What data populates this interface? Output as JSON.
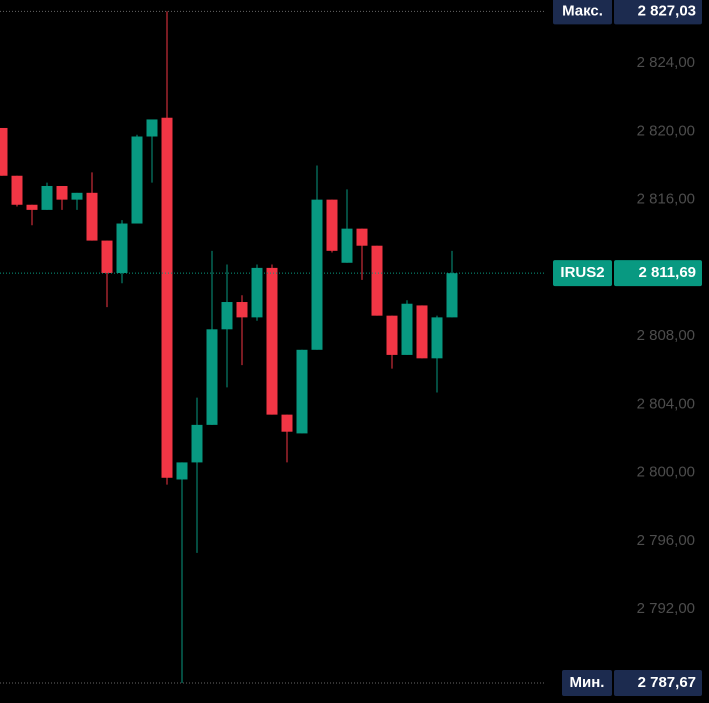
{
  "chart_data": {
    "type": "candlestick",
    "open": [
      2820.2,
      2817.4,
      2815.7,
      2815.4,
      2816.8,
      2816.0,
      2816.4,
      2813.6,
      2811.7,
      2814.6,
      2819.7,
      2820.8,
      2799.6,
      2800.6,
      2802.8,
      2808.4,
      2810.0,
      2809.1,
      2812.0,
      2803.4,
      2802.3,
      2807.2,
      2816.0,
      2812.3,
      2814.3,
      2813.3,
      2809.2,
      2806.9,
      2809.8,
      2806.7,
      2809.1
    ],
    "high": [
      2820.2,
      2817.4,
      2815.7,
      2817.0,
      2816.8,
      2816.4,
      2817.6,
      2813.6,
      2814.8,
      2819.8,
      2820.7,
      2827.03,
      2800.6,
      2804.4,
      2813.0,
      2812.2,
      2810.4,
      2812.2,
      2812.2,
      2803.4,
      2807.2,
      2818.0,
      2816.0,
      2816.6,
      2814.3,
      2813.3,
      2809.2,
      2810.1,
      2809.8,
      2809.2,
      2813.0
    ],
    "low": [
      2817.4,
      2815.6,
      2814.5,
      2815.4,
      2815.4,
      2815.4,
      2813.6,
      2809.7,
      2811.1,
      2814.6,
      2817.0,
      2799.3,
      2787.67,
      2795.3,
      2802.8,
      2805.0,
      2806.3,
      2808.9,
      2803.4,
      2800.6,
      2802.3,
      2807.2,
      2812.9,
      2812.3,
      2811.3,
      2809.2,
      2806.1,
      2806.9,
      2806.7,
      2804.7,
      2809.1
    ],
    "close": [
      2817.4,
      2815.7,
      2815.4,
      2816.8,
      2816.0,
      2816.4,
      2813.6,
      2811.7,
      2814.6,
      2819.7,
      2820.7,
      2799.7,
      2800.6,
      2802.8,
      2808.4,
      2810.0,
      2809.1,
      2812.0,
      2803.4,
      2802.4,
      2807.2,
      2816.0,
      2813.0,
      2814.3,
      2813.3,
      2809.2,
      2806.9,
      2809.9,
      2806.7,
      2809.1,
      2811.69
    ],
    "up_color": "#089981",
    "down_color": "#f23645",
    "ylim": [
      2786.5,
      2827.7
    ],
    "yticks": [
      {
        "value": 2824,
        "label": "2 824,00"
      },
      {
        "value": 2820,
        "label": "2 820,00"
      },
      {
        "value": 2816,
        "label": "2 816,00"
      },
      {
        "value": 2808,
        "label": "2 808,00"
      },
      {
        "value": 2804,
        "label": "2 804,00"
      },
      {
        "value": 2800,
        "label": "2 800,00"
      },
      {
        "value": 2796,
        "label": "2 796,00"
      },
      {
        "value": 2792,
        "label": "2 792,00"
      }
    ],
    "markers": [
      {
        "label": "Макс.",
        "value": 2827.03,
        "value_label": "2 827,03",
        "color": "#1c2b4f"
      },
      {
        "label": "IRUS2",
        "value": 2811.69,
        "value_label": "2 811,69",
        "color": "#089981"
      },
      {
        "label": "Мин.",
        "value": 2787.67,
        "value_label": "2 787,67",
        "color": "#1c2b4f"
      }
    ]
  }
}
